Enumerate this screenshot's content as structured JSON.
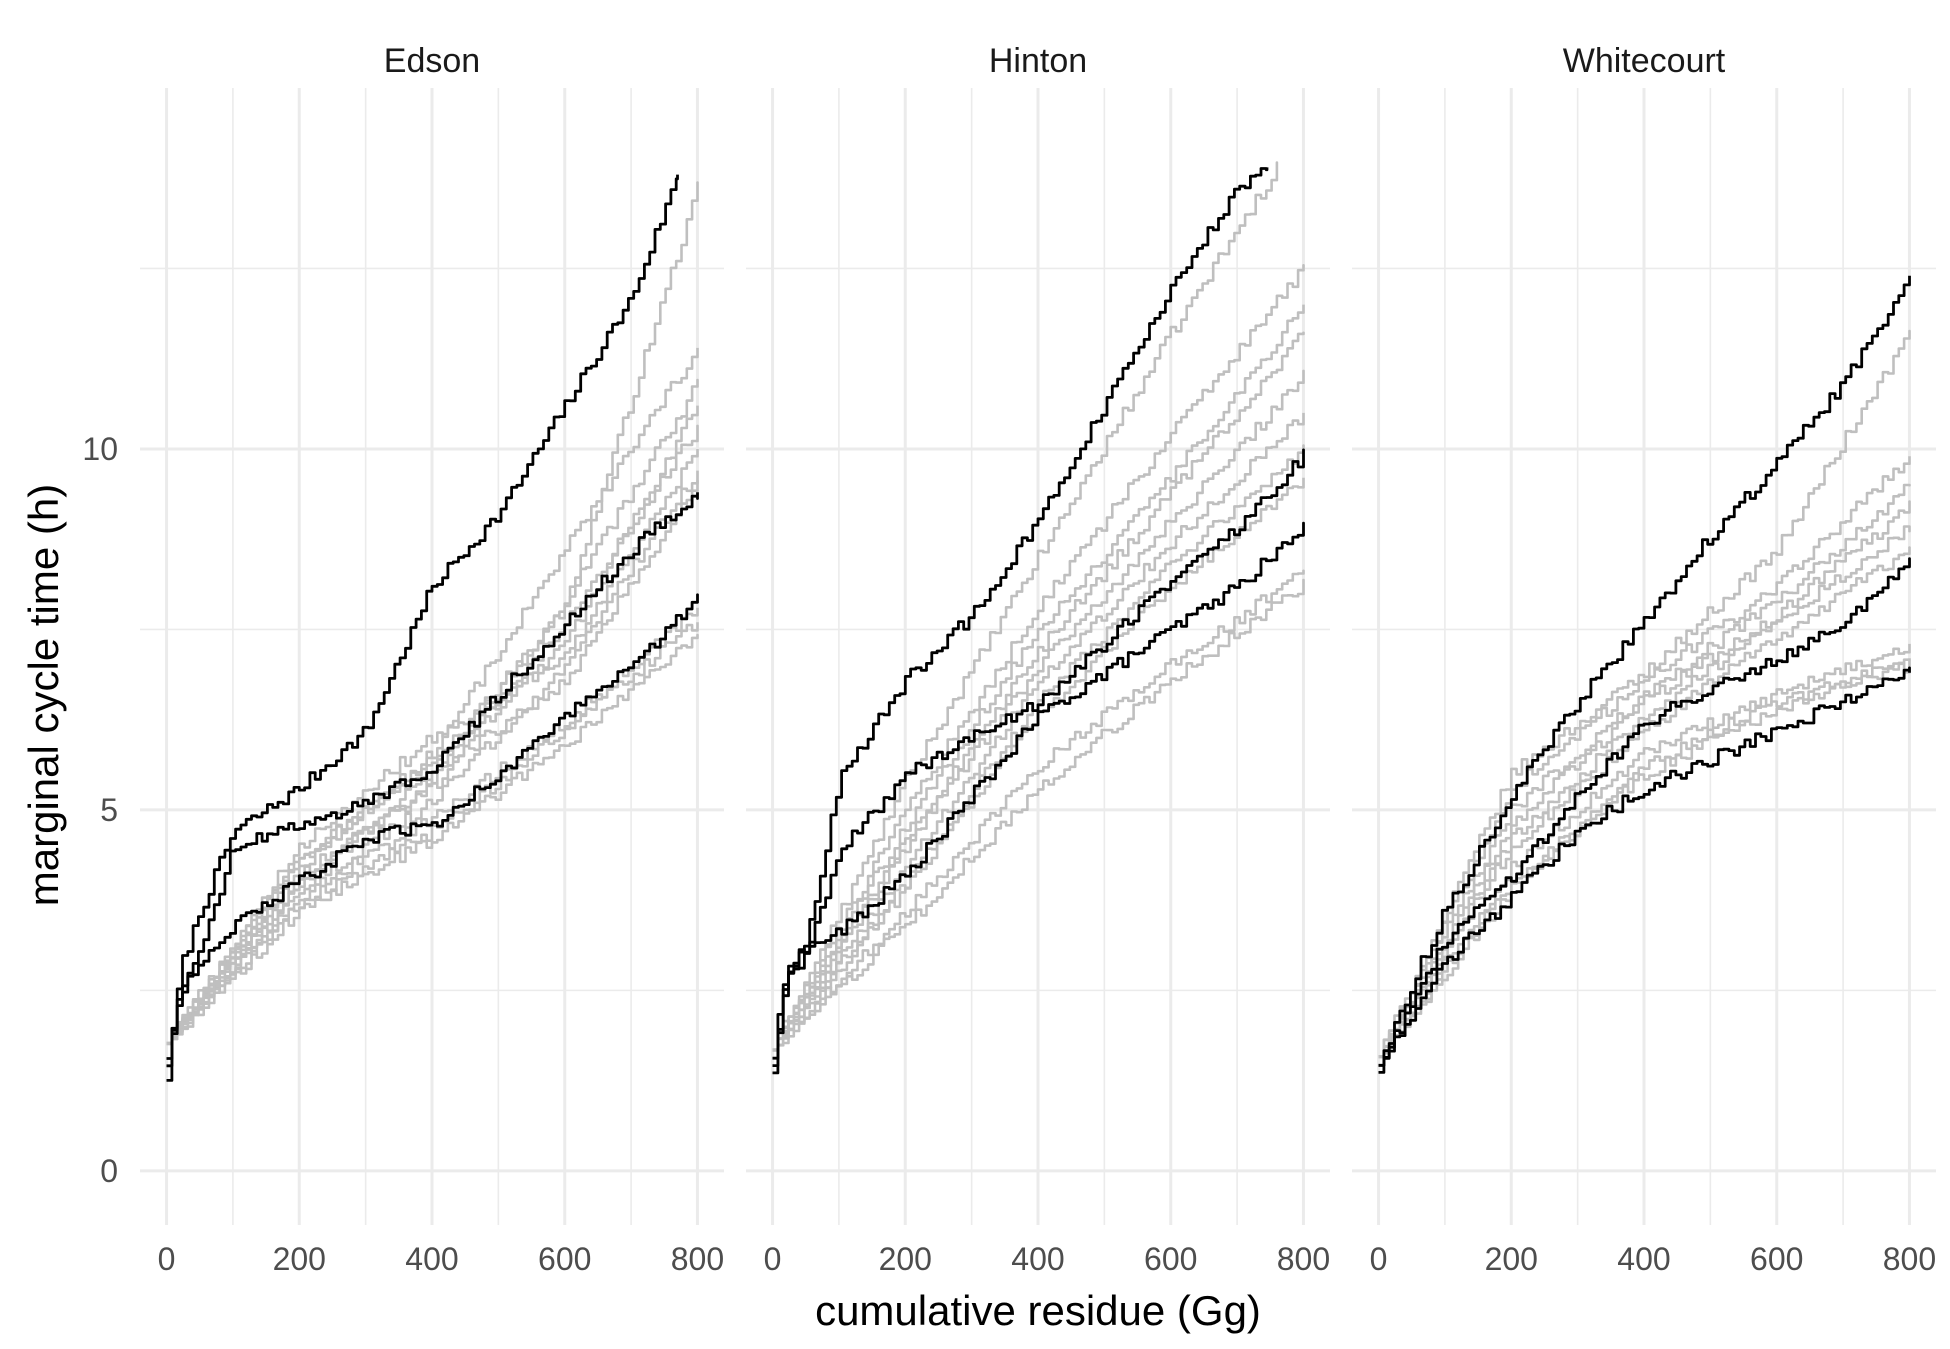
{
  "chart_data": {
    "type": "line",
    "xlabel": "cumulative residue (Gg)",
    "ylabel": "marginal cycle time (h)",
    "xlim": [
      -40,
      840
    ],
    "ylim": [
      -0.75,
      15.0
    ],
    "x_ticks": [
      "0",
      "200",
      "400",
      "600",
      "800"
    ],
    "y_ticks": [
      "0",
      "5",
      "10"
    ],
    "grid": true,
    "legend": "none",
    "colors": {
      "highlight": "#000000",
      "background_runs": "#bfbfbf"
    },
    "facets": [
      {
        "panel": "Edson",
        "highlight_series": [
          {
            "x": [
              0,
              20,
              50,
              100,
              200,
              300,
              400,
              500,
              600,
              700,
              770
            ],
            "y": [
              1.3,
              2.8,
              3.6,
              4.7,
              5.3,
              6.1,
              8.1,
              9.1,
              10.6,
              12.1,
              13.8
            ]
          },
          {
            "x": [
              0,
              20,
              50,
              100,
              200,
              300,
              400,
              500,
              600,
              700,
              800
            ],
            "y": [
              1.5,
              2.6,
              3.0,
              4.5,
              4.8,
              5.1,
              5.6,
              6.6,
              7.6,
              8.6,
              9.4
            ]
          },
          {
            "x": [
              0,
              20,
              50,
              100,
              200,
              300,
              400,
              500,
              600,
              700,
              800
            ],
            "y": [
              1.6,
              2.5,
              2.9,
              3.4,
              4.0,
              4.6,
              4.8,
              5.5,
              6.3,
              7.0,
              7.9
            ]
          }
        ],
        "background_series": [
          {
            "x": [
              0,
              200,
              400,
              600,
              800
            ],
            "y": [
              1.8,
              4.4,
              5.6,
              7.8,
              13.6
            ]
          },
          {
            "x": [
              0,
              200,
              400,
              600,
              800
            ],
            "y": [
              1.8,
              4.2,
              5.8,
              8.6,
              11.4
            ]
          },
          {
            "x": [
              0,
              200,
              400,
              600,
              800
            ],
            "y": [
              1.8,
              4.0,
              5.4,
              7.9,
              10.9
            ]
          },
          {
            "x": [
              0,
              200,
              400,
              600,
              800
            ],
            "y": [
              1.8,
              4.3,
              5.7,
              7.3,
              10.6
            ]
          },
          {
            "x": [
              0,
              200,
              400,
              600,
              800
            ],
            "y": [
              1.8,
              4.1,
              5.3,
              7.6,
              10.3
            ]
          },
          {
            "x": [
              0,
              200,
              400,
              600,
              800
            ],
            "y": [
              1.8,
              4.5,
              6.0,
              7.1,
              10.0
            ]
          },
          {
            "x": [
              0,
              200,
              400,
              600,
              800
            ],
            "y": [
              1.8,
              3.9,
              5.1,
              7.0,
              9.7
            ]
          },
          {
            "x": [
              0,
              200,
              400,
              600,
              800
            ],
            "y": [
              1.8,
              4.0,
              5.5,
              6.8,
              9.5
            ]
          },
          {
            "x": [
              0,
              200,
              400,
              600,
              800
            ],
            "y": [
              1.8,
              3.7,
              4.7,
              6.1,
              7.6
            ]
          },
          {
            "x": [
              0,
              200,
              400,
              600,
              800
            ],
            "y": [
              1.8,
              3.6,
              4.6,
              5.9,
              7.4
            ]
          },
          {
            "x": [
              0,
              200,
              400,
              600,
              800
            ],
            "y": [
              1.8,
              3.8,
              4.9,
              6.2,
              7.8
            ]
          }
        ]
      },
      {
        "panel": "Hinton",
        "highlight_series": [
          {
            "x": [
              0,
              20,
              50,
              100,
              200,
              300,
              400,
              500,
              600,
              700,
              745
            ],
            "y": [
              1.4,
              2.7,
              3.2,
              5.4,
              6.8,
              7.7,
              9.0,
              10.6,
              12.2,
              13.6,
              13.9
            ]
          },
          {
            "x": [
              0,
              20,
              50,
              100,
              200,
              300,
              400,
              500,
              600,
              700,
              800
            ],
            "y": [
              1.5,
              2.6,
              3.0,
              4.4,
              5.5,
              6.0,
              6.5,
              7.3,
              8.2,
              8.9,
              9.9
            ]
          },
          {
            "x": [
              0,
              20,
              50,
              100,
              200,
              300,
              400,
              500,
              600,
              700,
              800
            ],
            "y": [
              1.6,
              2.8,
              3.1,
              3.3,
              4.1,
              5.2,
              6.3,
              6.9,
              7.5,
              8.1,
              8.9
            ]
          }
        ],
        "background_series": [
          {
            "x": [
              0,
              200,
              400,
              600,
              760
            ],
            "y": [
              1.7,
              5.4,
              8.5,
              11.6,
              13.9
            ]
          },
          {
            "x": [
              0,
              200,
              400,
              600,
              800
            ],
            "y": [
              1.7,
              5.0,
              7.8,
              10.2,
              12.5
            ]
          },
          {
            "x": [
              0,
              200,
              400,
              600,
              800
            ],
            "y": [
              1.7,
              4.8,
              7.5,
              9.6,
              12.0
            ]
          },
          {
            "x": [
              0,
              200,
              400,
              600,
              800
            ],
            "y": [
              1.7,
              4.6,
              7.2,
              9.4,
              11.6
            ]
          },
          {
            "x": [
              0,
              200,
              400,
              600,
              800
            ],
            "y": [
              1.7,
              4.5,
              7.0,
              9.0,
              11.0
            ]
          },
          {
            "x": [
              0,
              200,
              400,
              600,
              800
            ],
            "y": [
              1.7,
              4.2,
              6.8,
              8.7,
              10.5
            ]
          },
          {
            "x": [
              0,
              200,
              400,
              600,
              800
            ],
            "y": [
              1.7,
              4.0,
              6.5,
              8.4,
              10.0
            ]
          },
          {
            "x": [
              0,
              200,
              400,
              600,
              800
            ],
            "y": [
              1.7,
              3.9,
              6.3,
              8.1,
              9.6
            ]
          },
          {
            "x": [
              0,
              200,
              400,
              600,
              800
            ],
            "y": [
              1.7,
              3.6,
              5.6,
              7.0,
              8.3
            ]
          },
          {
            "x": [
              0,
              200,
              400,
              600,
              800
            ],
            "y": [
              1.7,
              3.4,
              5.3,
              6.8,
              8.1
            ]
          }
        ]
      },
      {
        "panel": "Whitecourt",
        "highlight_series": [
          {
            "x": [
              0,
              20,
              50,
              100,
              200,
              300,
              400,
              500,
              600,
              700,
              800
            ],
            "y": [
              1.5,
              1.9,
              2.6,
              3.6,
              5.2,
              6.5,
              7.6,
              8.8,
              9.8,
              10.9,
              12.4
            ]
          },
          {
            "x": [
              0,
              20,
              50,
              100,
              200,
              300,
              400,
              500,
              600,
              700,
              800
            ],
            "y": [
              1.5,
              1.8,
              2.3,
              3.2,
              4.1,
              5.2,
              6.2,
              6.7,
              7.1,
              7.6,
              8.4
            ]
          },
          {
            "x": [
              0,
              20,
              50,
              100,
              200,
              300,
              400,
              500,
              600,
              700,
              800
            ],
            "y": [
              1.4,
              1.7,
              2.2,
              2.9,
              3.8,
              4.7,
              5.3,
              5.7,
              6.1,
              6.5,
              6.9
            ]
          }
        ],
        "background_series": [
          {
            "x": [
              0,
              200,
              400,
              600,
              800
            ],
            "y": [
              1.6,
              5.5,
              6.9,
              8.6,
              11.6
            ]
          },
          {
            "x": [
              0,
              200,
              400,
              600,
              800
            ],
            "y": [
              1.6,
              5.3,
              6.8,
              8.1,
              9.9
            ]
          },
          {
            "x": [
              0,
              200,
              400,
              600,
              800
            ],
            "y": [
              1.6,
              5.0,
              6.6,
              7.9,
              9.5
            ]
          },
          {
            "x": [
              0,
              200,
              400,
              600,
              800
            ],
            "y": [
              1.6,
              4.8,
              6.5,
              7.7,
              9.2
            ]
          },
          {
            "x": [
              0,
              200,
              400,
              600,
              800
            ],
            "y": [
              1.6,
              4.6,
              6.3,
              7.6,
              8.9
            ]
          },
          {
            "x": [
              0,
              200,
              400,
              600,
              800
            ],
            "y": [
              1.6,
              4.5,
              6.1,
              7.4,
              8.6
            ]
          },
          {
            "x": [
              0,
              200,
              400,
              600,
              800
            ],
            "y": [
              1.6,
              4.2,
              5.8,
              6.6,
              7.3
            ]
          },
          {
            "x": [
              0,
              200,
              400,
              600,
              800
            ],
            "y": [
              1.6,
              4.0,
              5.5,
              6.4,
              7.1
            ]
          },
          {
            "x": [
              0,
              200,
              400,
              600,
              800
            ],
            "y": [
              1.6,
              3.9,
              5.6,
              6.5,
              7.0
            ]
          }
        ]
      }
    ]
  }
}
